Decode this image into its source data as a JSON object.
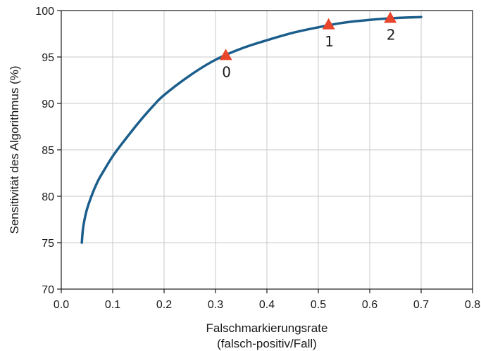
{
  "chart_data": {
    "type": "line",
    "title": "",
    "xlabel_line1": "Falschmarkierungsrate",
    "xlabel_line2": "(falsch-positiv/Fall)",
    "ylabel": "Sensitivität des Algorithmus (%)",
    "xlim": [
      0.0,
      0.8
    ],
    "ylim": [
      70,
      100
    ],
    "x_ticks": [
      0.0,
      0.1,
      0.2,
      0.3,
      0.4,
      0.5,
      0.6,
      0.7,
      0.8
    ],
    "x_tick_labels": [
      "0.0",
      "0.1",
      "0.2",
      "0.3",
      "0.4",
      "0.5",
      "0.6",
      "0.7",
      "0.8"
    ],
    "y_ticks": [
      70,
      75,
      80,
      85,
      90,
      95,
      100
    ],
    "y_tick_labels": [
      "70",
      "75",
      "80",
      "85",
      "90",
      "95",
      "100"
    ],
    "grid": true,
    "series": [
      {
        "color": "#1b5e8c",
        "x": [
          0.04,
          0.042,
          0.045,
          0.05,
          0.06,
          0.07,
          0.08,
          0.1,
          0.12,
          0.15,
          0.18,
          0.2,
          0.25,
          0.3,
          0.35,
          0.4,
          0.45,
          0.5,
          0.55,
          0.6,
          0.65,
          0.7
        ],
        "y": [
          75.0,
          76.4,
          77.4,
          78.6,
          80.2,
          81.5,
          82.5,
          84.3,
          85.8,
          87.9,
          89.8,
          90.9,
          93.0,
          94.7,
          95.9,
          96.8,
          97.6,
          98.2,
          98.7,
          99.0,
          99.2,
          99.3
        ]
      }
    ],
    "markers": [
      {
        "label": "0",
        "x": 0.32,
        "y": 95.2,
        "color": "#e8452c"
      },
      {
        "label": "1",
        "x": 0.52,
        "y": 98.5,
        "color": "#e8452c"
      },
      {
        "label": "2",
        "x": 0.64,
        "y": 99.2,
        "color": "#e8452c"
      }
    ]
  }
}
